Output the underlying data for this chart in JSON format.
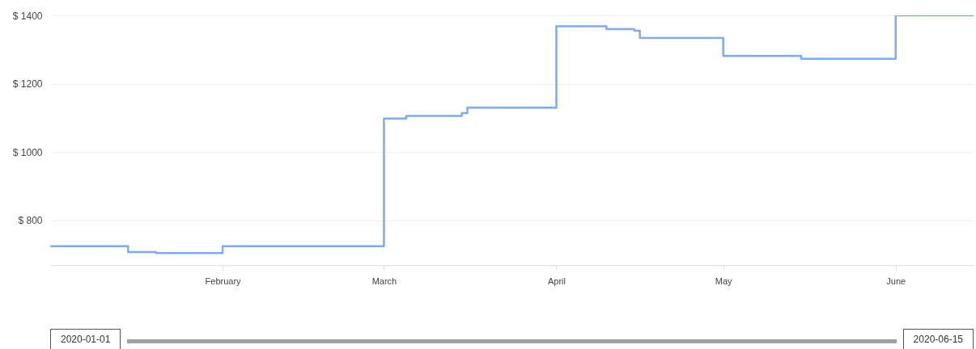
{
  "chart_data": {
    "type": "step",
    "x": [
      "2020-01-01",
      "2020-01-15",
      "2020-01-20",
      "2020-02-01",
      "2020-03-01",
      "2020-03-05",
      "2020-03-15",
      "2020-03-16",
      "2020-04-01",
      "2020-04-10",
      "2020-04-15",
      "2020-04-16",
      "2020-05-01",
      "2020-05-15",
      "2020-06-01",
      "2020-06-15"
    ],
    "series": [
      {
        "color": "#7eaaf2",
        "values": [
          725,
          708,
          705,
          725,
          1098,
          1106,
          1114,
          1130,
          1368,
          1360,
          1355,
          1334,
          1281,
          1273,
          1400,
          1400
        ]
      }
    ],
    "xlim": [
      "2020-01-01",
      "2020-06-15"
    ],
    "xticks": [
      {
        "value": "2020-02-01",
        "label": "February"
      },
      {
        "value": "2020-03-01",
        "label": "March"
      },
      {
        "value": "2020-04-01",
        "label": "April"
      },
      {
        "value": "2020-05-01",
        "label": "May"
      },
      {
        "value": "2020-06-01",
        "label": "June"
      }
    ],
    "ylim": [
      670,
      1400
    ],
    "yticks": [
      {
        "value": 800,
        "label": "$ 800"
      },
      {
        "value": 1000,
        "label": "$ 1000"
      },
      {
        "value": 1200,
        "label": "$ 1200"
      },
      {
        "value": 1400,
        "label": "$ 1400"
      }
    ],
    "annotations": [
      "2020-01-01",
      "2020-06-15"
    ],
    "grid": "y",
    "marker": "none",
    "line_style": "solid"
  }
}
